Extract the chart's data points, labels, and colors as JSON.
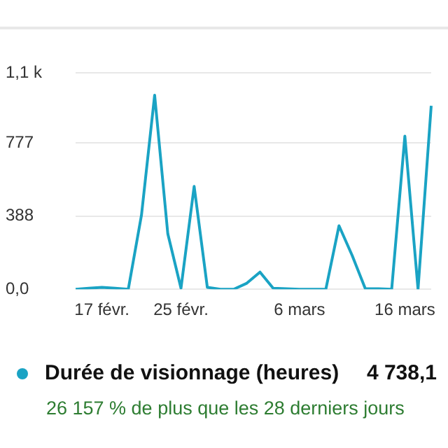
{
  "chart_data": {
    "type": "line",
    "categories": [
      null,
      null,
      "17 févr.",
      null,
      null,
      null,
      null,
      null,
      "25 févr.",
      null,
      null,
      null,
      null,
      null,
      null,
      null,
      null,
      "6 mars",
      null,
      null,
      null,
      null,
      null,
      null,
      null,
      "16 mars",
      null,
      null
    ],
    "series": [
      {
        "name": "Durée de visionnage (heures)",
        "color": "#1aa3c4",
        "values": [
          0,
          5,
          10,
          5,
          0,
          393,
          1030,
          294,
          5,
          546,
          10,
          0,
          0,
          32,
          91,
          5,
          3,
          0,
          0,
          0,
          337,
          179,
          3,
          3,
          0,
          813,
          0,
          974
        ]
      }
    ],
    "ylim": [
      0,
      1149
    ],
    "yticks": [
      {
        "value": 0,
        "label": "0,0"
      },
      388,
      777,
      {
        "value": 1149,
        "label": "1,1 k"
      }
    ],
    "grid": "y",
    "legend": "bottom",
    "marker": "none",
    "line_style": "solid",
    "annotations": [
      "4 738,1",
      "26 157 % de plus que les 28 derniers jours"
    ]
  }
}
